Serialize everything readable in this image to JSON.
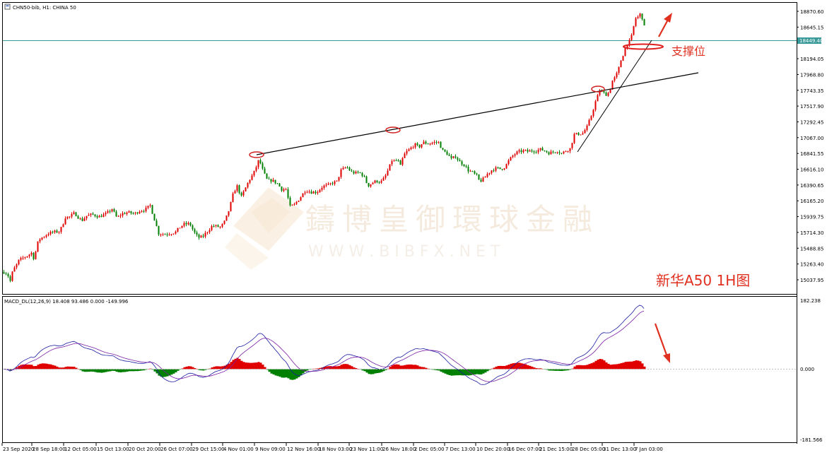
{
  "header": {
    "title": "CHN50-bib, H1:  CHINA 50"
  },
  "watermark": {
    "text_cn": "鑄博皇御環球金融",
    "text_en": "W W W . B I B F X . N E T"
  },
  "annotations": {
    "support": "支撑位",
    "caption": "新华A50 1H图"
  },
  "colors": {
    "bull": "#e00000",
    "bear": "#008000",
    "hline": "#3a9a9a",
    "annot": "#e03020",
    "signal": "#7a1fa2",
    "macd_line": "#1a1aa0"
  },
  "price_axis": {
    "ticks": [
      "18870.60",
      "18645.15",
      "18194.05",
      "17968.80",
      "17743.35",
      "17517.90",
      "17292.45",
      "17067.00",
      "16841.55",
      "16616.10",
      "16390.65",
      "16165.20",
      "15939.75",
      "15714.30",
      "15488.85",
      "15263.40",
      "15037.95"
    ],
    "current_price": "18449.40"
  },
  "macd_panel": {
    "label": "MACD_DL(12,26,9) 18.408 93.486 0.000 -149.996",
    "ticks": [
      "182.238",
      "0.000",
      "-181.566"
    ]
  },
  "time_axis": {
    "labels": [
      "23 Sep 2020",
      "28 Sep 18:00",
      "12 Oct 05:00",
      "15 Oct 13:00",
      "20 Oct 20:00",
      "26 Oct 07:00",
      "29 Oct 15:00",
      "4 Nov 01:00",
      "9 Nov 09:00",
      "12 Nov 16:00",
      "18 Nov 03:00",
      "23 Nov 11:00",
      "26 Nov 18:00",
      "2 Dec 05:00",
      "7 Dec 13:00",
      "10 Dec 20:00",
      "16 Dec 07:00",
      "21 Dec 15:00",
      "28 Dec 05:00",
      "31 Dec 13:00",
      "7 Jan 03:00"
    ]
  },
  "chart_data": {
    "type": "candlestick",
    "title": "CHN50-bib, H1:  CHINA 50",
    "price_path": [
      [
        0,
        15230
      ],
      [
        5,
        15150
      ],
      [
        10,
        15120
      ],
      [
        14,
        15020
      ],
      [
        18,
        15180
      ],
      [
        22,
        15230
      ],
      [
        26,
        15310
      ],
      [
        32,
        15350
      ],
      [
        38,
        15380
      ],
      [
        44,
        15420
      ],
      [
        48,
        15330
      ],
      [
        52,
        15550
      ],
      [
        56,
        15620
      ],
      [
        62,
        15660
      ],
      [
        68,
        15700
      ],
      [
        76,
        15720
      ],
      [
        84,
        15730
      ],
      [
        88,
        15820
      ],
      [
        93,
        15960
      ],
      [
        96,
        15920
      ],
      [
        105,
        15990
      ],
      [
        115,
        15880
      ],
      [
        122,
        15950
      ],
      [
        130,
        15970
      ],
      [
        140,
        15940
      ],
      [
        150,
        15980
      ],
      [
        158,
        16050
      ],
      [
        165,
        15920
      ],
      [
        172,
        15980
      ],
      [
        180,
        16000
      ],
      [
        190,
        15980
      ],
      [
        196,
        16020
      ],
      [
        205,
        16040
      ],
      [
        212,
        16100
      ],
      [
        218,
        15900
      ],
      [
        224,
        15700
      ],
      [
        232,
        15690
      ],
      [
        240,
        15700
      ],
      [
        248,
        15720
      ],
      [
        255,
        15800
      ],
      [
        260,
        15830
      ],
      [
        268,
        15840
      ],
      [
        274,
        15720
      ],
      [
        280,
        15640
      ],
      [
        286,
        15650
      ],
      [
        292,
        15720
      ],
      [
        300,
        15810
      ],
      [
        306,
        15800
      ],
      [
        312,
        15790
      ],
      [
        318,
        15880
      ],
      [
        324,
        16050
      ],
      [
        330,
        16290
      ],
      [
        336,
        16390
      ],
      [
        340,
        16200
      ],
      [
        346,
        16330
      ],
      [
        352,
        16460
      ],
      [
        358,
        16550
      ],
      [
        362,
        16650
      ],
      [
        366,
        16760
      ],
      [
        372,
        16580
      ],
      [
        378,
        16450
      ],
      [
        384,
        16460
      ],
      [
        392,
        16410
      ],
      [
        398,
        16330
      ],
      [
        404,
        16330
      ],
      [
        410,
        16080
      ],
      [
        416,
        16110
      ],
      [
        424,
        16210
      ],
      [
        432,
        16320
      ],
      [
        440,
        16290
      ],
      [
        448,
        16290
      ],
      [
        456,
        16370
      ],
      [
        464,
        16390
      ],
      [
        470,
        16420
      ],
      [
        476,
        16440
      ],
      [
        482,
        16600
      ],
      [
        490,
        16650
      ],
      [
        496,
        16580
      ],
      [
        502,
        16560
      ],
      [
        508,
        16570
      ],
      [
        514,
        16520
      ],
      [
        520,
        16380
      ],
      [
        526,
        16420
      ],
      [
        532,
        16450
      ],
      [
        538,
        16430
      ],
      [
        544,
        16500
      ],
      [
        550,
        16640
      ],
      [
        554,
        16740
      ],
      [
        558,
        16730
      ],
      [
        562,
        16750
      ],
      [
        566,
        16660
      ],
      [
        570,
        16800
      ],
      [
        574,
        16860
      ],
      [
        580,
        16910
      ],
      [
        586,
        16970
      ],
      [
        592,
        16930
      ],
      [
        598,
        17000
      ],
      [
        606,
        16980
      ],
      [
        614,
        17000
      ],
      [
        620,
        17000
      ],
      [
        626,
        16880
      ],
      [
        632,
        16840
      ],
      [
        638,
        16760
      ],
      [
        644,
        16800
      ],
      [
        650,
        16720
      ],
      [
        656,
        16680
      ],
      [
        662,
        16600
      ],
      [
        668,
        16570
      ],
      [
        674,
        16520
      ],
      [
        678,
        16440
      ],
      [
        684,
        16480
      ],
      [
        690,
        16560
      ],
      [
        696,
        16610
      ],
      [
        702,
        16630
      ],
      [
        708,
        16620
      ],
      [
        714,
        16650
      ],
      [
        720,
        16750
      ],
      [
        726,
        16820
      ],
      [
        732,
        16860
      ],
      [
        740,
        16880
      ],
      [
        746,
        16870
      ],
      [
        752,
        16880
      ],
      [
        758,
        16880
      ],
      [
        764,
        16900
      ],
      [
        770,
        16880
      ],
      [
        776,
        16850
      ],
      [
        782,
        16860
      ],
      [
        788,
        16880
      ],
      [
        794,
        16840
      ],
      [
        800,
        16880
      ],
      [
        806,
        16910
      ],
      [
        812,
        17110
      ],
      [
        818,
        17120
      ],
      [
        824,
        17130
      ],
      [
        830,
        17220
      ],
      [
        836,
        17380
      ],
      [
        842,
        17580
      ],
      [
        848,
        17740
      ],
      [
        854,
        17700
      ],
      [
        858,
        17680
      ],
      [
        862,
        17730
      ],
      [
        866,
        17880
      ],
      [
        870,
        17930
      ],
      [
        874,
        18020
      ],
      [
        878,
        18170
      ],
      [
        882,
        18280
      ],
      [
        886,
        18400
      ],
      [
        890,
        18440
      ],
      [
        894,
        18540
      ],
      [
        898,
        18770
      ],
      [
        902,
        18790
      ],
      [
        906,
        18840
      ],
      [
        910,
        18720
      ],
      [
        914,
        18430
      ]
    ],
    "price_axis_range": [
      15037.95,
      18870.6
    ],
    "macd_range": [
      -181.566,
      182.238
    ],
    "series": [
      {
        "name": "MACD_DL",
        "values": "histogram"
      }
    ],
    "annotations": [
      {
        "type": "trendline",
        "from": [
          "9 Nov 09:00",
          16820
        ],
        "to": [
          "7 Jan 03:00",
          17970
        ]
      },
      {
        "type": "trendline",
        "from": [
          "28 Dec 05:00",
          16840
        ],
        "to": [
          "7 Jan 03:00",
          18440
        ]
      },
      {
        "type": "hline",
        "value": 18449.4
      }
    ],
    "xlabel": "",
    "ylabel": ""
  }
}
